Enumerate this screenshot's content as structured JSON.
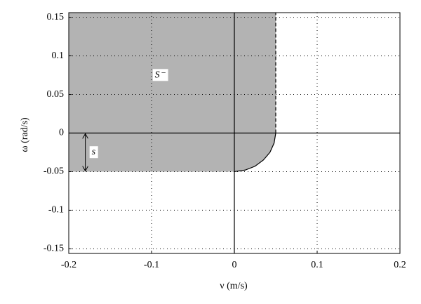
{
  "chart_data": {
    "type": "region",
    "xlabel": "ν (m/s)",
    "ylabel": "ω (rad/s)",
    "xlim": [
      -0.2,
      0.2
    ],
    "ylim": [
      -0.156,
      0.156
    ],
    "xticks": [
      -0.2,
      -0.1,
      0,
      0.1,
      0.2
    ],
    "yticks": [
      -0.15,
      -0.1,
      -0.05,
      0,
      0.05,
      0.1,
      0.15
    ],
    "grid": true,
    "zero_lines": true,
    "region": {
      "color": "#b3b3b3",
      "x": [
        -0.2,
        0.05,
        0.05,
        0.048,
        0.043,
        0.035,
        0.025,
        0.013,
        0,
        -0.2
      ],
      "y": [
        0.156,
        0.156,
        0,
        -0.013,
        -0.025,
        -0.035,
        -0.043,
        -0.048,
        -0.05,
        -0.05
      ]
    },
    "boundary": {
      "x": [
        0.05,
        0.048,
        0.043,
        0.035,
        0.025,
        0.013,
        0
      ],
      "y": [
        0,
        -0.013,
        -0.025,
        -0.035,
        -0.043,
        -0.048,
        -0.05
      ]
    },
    "dashed_boundary": {
      "x": [
        0.05,
        0.05
      ],
      "y": [
        0,
        0.156
      ]
    },
    "annotations": [
      {
        "text": "S⁻",
        "x": -0.09,
        "y": 0.075
      },
      {
        "text": "s",
        "x": -0.17,
        "y": -0.025
      }
    ],
    "arrow": {
      "x": -0.18,
      "y": [
        0,
        -0.05
      ]
    }
  }
}
